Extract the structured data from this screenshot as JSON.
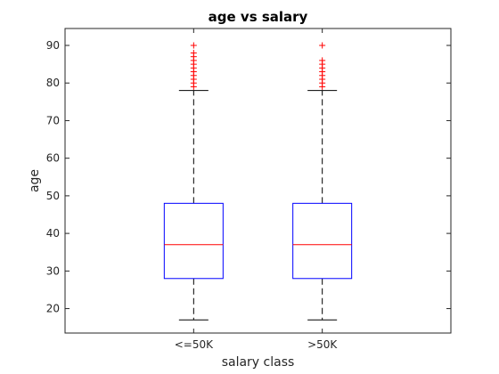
{
  "chart_data": {
    "type": "box",
    "title": "age vs salary",
    "xlabel": "salary class",
    "ylabel": "age",
    "ylim": [
      13.5,
      94.5
    ],
    "yticks": [
      20,
      30,
      40,
      50,
      60,
      70,
      80,
      90
    ],
    "categories": [
      "<=50K",
      ">50K"
    ],
    "boxes": [
      {
        "category": "<=50K",
        "whisker_low": 17,
        "q1": 28,
        "median": 37,
        "q3": 48,
        "whisker_high": 78,
        "outliers": [
          79,
          80,
          81,
          82,
          83,
          84,
          85,
          86,
          87,
          88,
          90
        ]
      },
      {
        "category": ">50K",
        "whisker_low": 17,
        "q1": 28,
        "median": 37,
        "q3": 48,
        "whisker_high": 78,
        "outliers": [
          79,
          80,
          81,
          82,
          83,
          84,
          85,
          86,
          90
        ]
      }
    ],
    "grid": false,
    "colors": {
      "box": "#0000ff",
      "median": "#ff0000",
      "whisker": "#000000",
      "outlier": "#ff0000",
      "axes": "#262626"
    }
  }
}
